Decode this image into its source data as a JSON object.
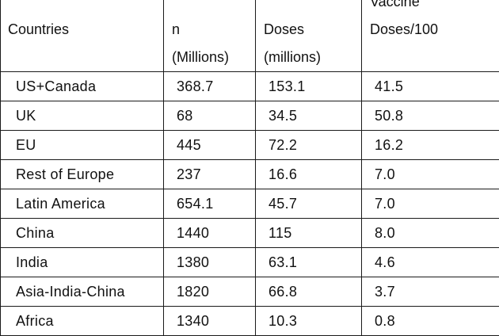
{
  "table": {
    "headers": [
      [
        "",
        "Countries",
        ""
      ],
      [
        "",
        "n",
        "(Millions)"
      ],
      [
        "",
        "Doses",
        "(millions)"
      ],
      [
        "Vaccine",
        "Doses/100",
        ""
      ]
    ],
    "rows": [
      [
        "US+Canada",
        "368.7",
        "153.1",
        "41.5"
      ],
      [
        "UK",
        "68",
        "34.5",
        "50.8"
      ],
      [
        "EU",
        "445",
        "72.2",
        "16.2"
      ],
      [
        "Rest of Europe",
        "237",
        "16.6",
        "7.0"
      ],
      [
        "Latin America",
        "654.1",
        "45.7",
        "7.0"
      ],
      [
        "China",
        "1440",
        "115",
        "8.0"
      ],
      [
        "India",
        "1380",
        "63.1",
        "4.6"
      ],
      [
        "Asia-India-China",
        "1820",
        "66.8",
        "3.7"
      ],
      [
        "Africa",
        "1340",
        "10.3",
        "0.8"
      ]
    ]
  }
}
